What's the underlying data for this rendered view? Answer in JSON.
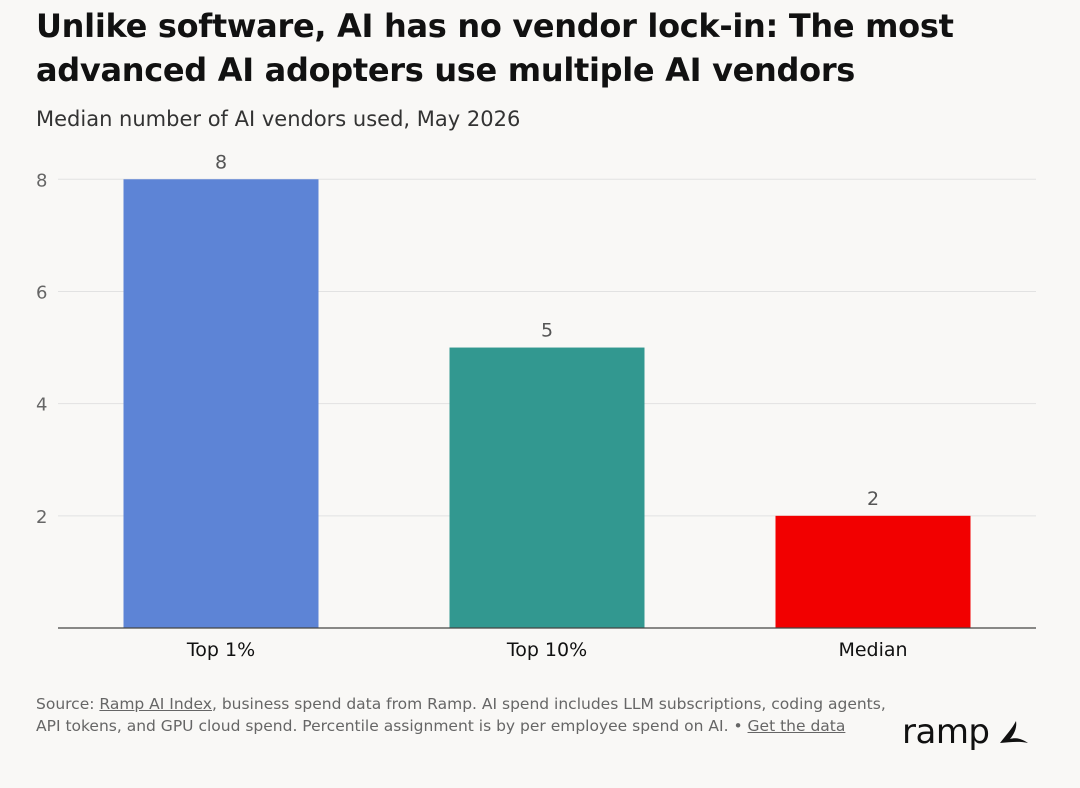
{
  "title": "Unlike software, AI has no vendor lock-in: The most advanced AI adopters use multiple AI vendors",
  "subtitle": "Median number of AI vendors used, May 2026",
  "chart_data": {
    "type": "bar",
    "categories": [
      "Top 1%",
      "Top 10%",
      "Median"
    ],
    "values": [
      8,
      5,
      2
    ],
    "colors": [
      "#5d84d6",
      "#329890",
      "#f20000"
    ],
    "yticks": [
      2,
      4,
      6,
      8
    ],
    "ylim": [
      0,
      8.7
    ],
    "grid": true,
    "legend": "none",
    "xlabel": "",
    "ylabel": ""
  },
  "footer": {
    "source_prefix": "Source: ",
    "source_link": "Ramp AI Index",
    "source_text": ", business spend data from Ramp. AI spend includes LLM subscriptions, coding agents, API tokens, and GPU cloud spend. Percentile assignment is by per employee spend on AI. • ",
    "data_link": "Get the data"
  },
  "logo": {
    "text": "ramp",
    "icon": "ramp-logo-icon"
  }
}
